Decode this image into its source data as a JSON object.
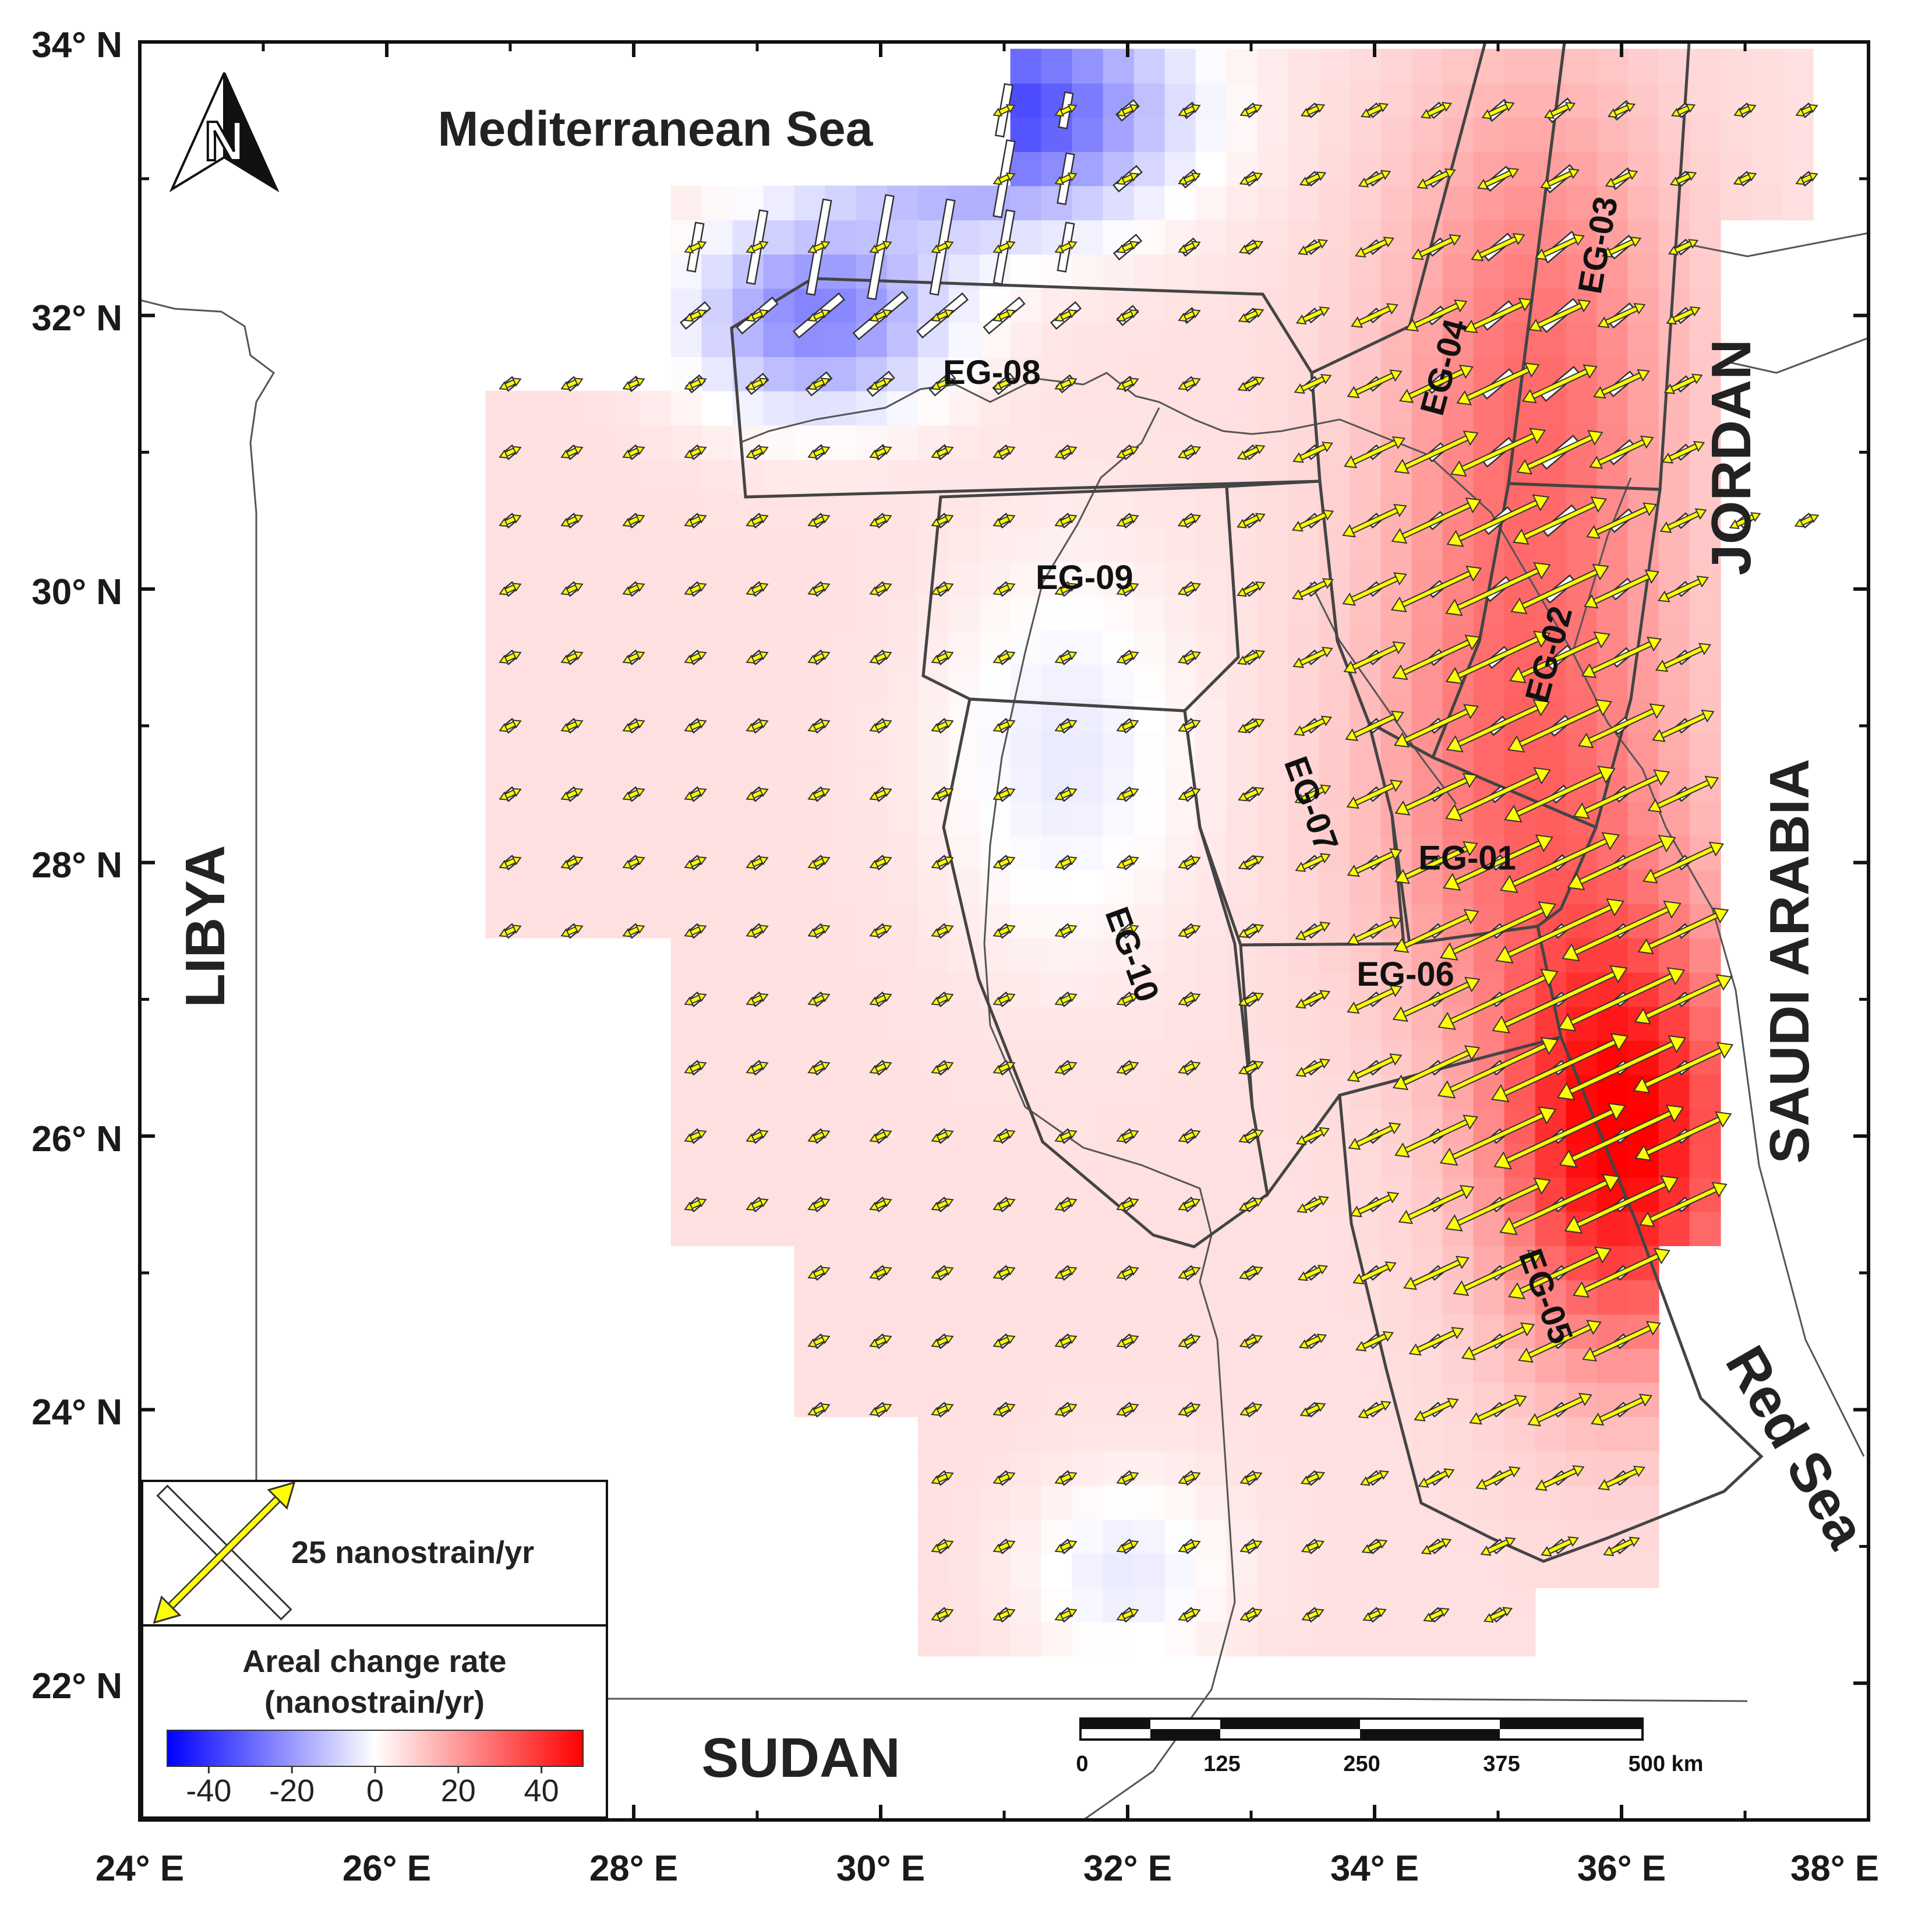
{
  "map": {
    "lon_range": [
      24,
      38
    ],
    "lat_range": [
      21,
      34
    ],
    "x_ticks": [
      {
        "value": 24,
        "label": "24° E"
      },
      {
        "value": 26,
        "label": "26° E"
      },
      {
        "value": 28,
        "label": "28° E"
      },
      {
        "value": 30,
        "label": "30° E"
      },
      {
        "value": 32,
        "label": "32° E"
      },
      {
        "value": 34,
        "label": "34° E"
      },
      {
        "value": 36,
        "label": "36° E"
      },
      {
        "value": 38,
        "label": "38° E"
      }
    ],
    "y_ticks": [
      {
        "value": 34,
        "label": "34° N"
      },
      {
        "value": 32,
        "label": "32° N"
      },
      {
        "value": 30,
        "label": "30° N"
      },
      {
        "value": 28,
        "label": "28° N"
      },
      {
        "value": 26,
        "label": "26° N"
      },
      {
        "value": 24,
        "label": "24° N"
      },
      {
        "value": 22,
        "label": "22° N"
      }
    ]
  },
  "labels": {
    "mediterranean": "Mediterranean Sea",
    "libya": "LIBYA",
    "sudan": "SUDAN",
    "jordan": "JORDAN",
    "saudi_arabia": "SAUDI ARABIA",
    "red_sea": "Red Sea",
    "north": "N"
  },
  "zones": [
    {
      "id": "EG-01",
      "lon": 34.75,
      "lat": 27.95,
      "rot": 0
    },
    {
      "id": "EG-02",
      "lon": 35.5,
      "lat": 29.5,
      "rot": -75
    },
    {
      "id": "EG-03",
      "lon": 35.9,
      "lat": 32.5,
      "rot": -80
    },
    {
      "id": "EG-04",
      "lon": 34.65,
      "lat": 31.6,
      "rot": -75
    },
    {
      "id": "EG-05",
      "lon": 35.3,
      "lat": 24.8,
      "rot": 70
    },
    {
      "id": "EG-06",
      "lon": 34.25,
      "lat": 27.1,
      "rot": 0
    },
    {
      "id": "EG-07",
      "lon": 33.4,
      "lat": 28.4,
      "rot": 70
    },
    {
      "id": "EG-08",
      "lon": 30.9,
      "lat": 31.5,
      "rot": 0
    },
    {
      "id": "EG-09",
      "lon": 31.65,
      "lat": 30.0,
      "rot": 0
    },
    {
      "id": "EG-10",
      "lon": 31.95,
      "lat": 27.3,
      "rot": 70
    }
  ],
  "legend": {
    "strain_scale_label": "25 nanostrain/yr",
    "colorbar_title_1": "Areal change rate",
    "colorbar_title_2": "(nanostrain/yr)",
    "colorbar_range": [
      -50,
      50
    ],
    "colorbar_ticks": [
      {
        "value": -40,
        "label": "-40"
      },
      {
        "value": -20,
        "label": "-20"
      },
      {
        "value": 0,
        "label": "0"
      },
      {
        "value": 20,
        "label": "20"
      },
      {
        "value": 40,
        "label": "40"
      }
    ],
    "colors": {
      "negative": "#0000ff",
      "zero": "#ffffff",
      "positive": "#ff0000"
    }
  },
  "scale_bar": {
    "ticks": [
      "0",
      "125",
      "250",
      "375",
      "500 km"
    ]
  },
  "colors": {
    "extension_arrow": "#ffff00",
    "compression_arrow": "#ffffff",
    "zone_boundary": "#444444",
    "frame": "#111111"
  }
}
